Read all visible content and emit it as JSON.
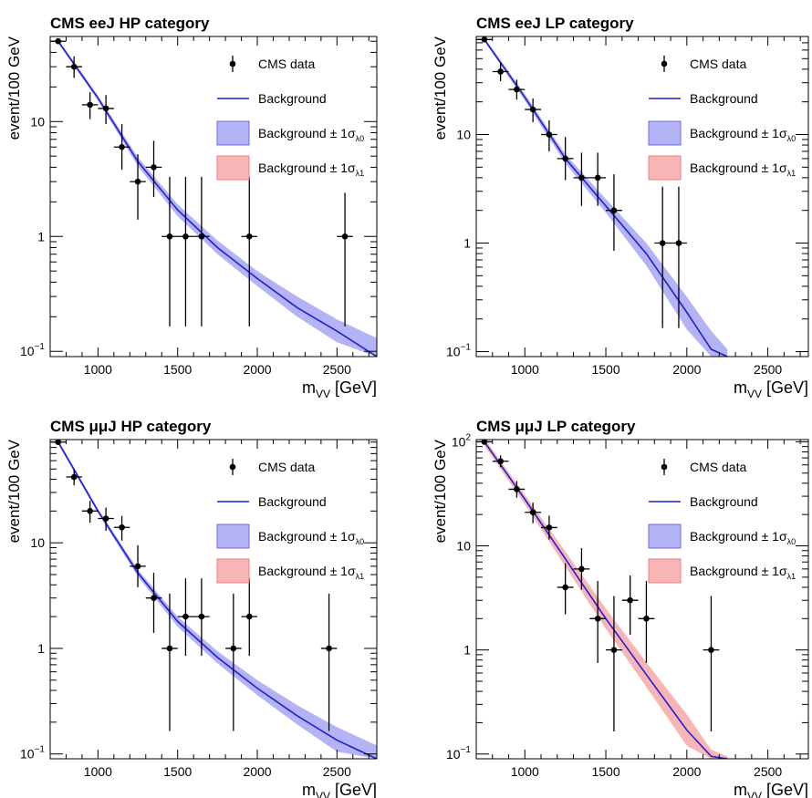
{
  "colors": {
    "data": "#000000",
    "background_line": "#1f1fd6",
    "band_lambda0": "#b3b3f5",
    "band_lambda0_edge": "#6b6bea",
    "band_lambda1": "#f7b5b5",
    "band_lambda1_edge": "#ee7f7f"
  },
  "legend": {
    "data": "CMS data",
    "background": "Background",
    "band0_main": "Background ± 1σ",
    "band0_sub": "λ0",
    "band1_main": "Background ± 1σ",
    "band1_sub": "λ1"
  },
  "chart_data": [
    {
      "type": "scatter",
      "title": "CMS eeJ HP category",
      "xlabel_main": "m",
      "xlabel_sub": "VV",
      "xlabel_unit": " [GeV]",
      "ylabel": "event/100 GeV",
      "log_y": true,
      "xlim": [
        700,
        2750
      ],
      "ylim": [
        0.09,
        55
      ],
      "xticks": [
        1000,
        1500,
        2000,
        2500
      ],
      "yticks": [
        {
          "v": 0.1,
          "base": "10",
          "exp": "−1"
        },
        {
          "v": 1,
          "base": "1",
          "exp": ""
        },
        {
          "v": 10,
          "base": "10",
          "exp": ""
        }
      ],
      "data_points": [
        {
          "x": 750,
          "y": 50,
          "lo": 50,
          "hi": 50
        },
        {
          "x": 850,
          "y": 30,
          "lo": 24,
          "hi": 37
        },
        {
          "x": 950,
          "y": 14,
          "lo": 10.5,
          "hi": 18
        },
        {
          "x": 1050,
          "y": 13,
          "lo": 9.5,
          "hi": 17
        },
        {
          "x": 1150,
          "y": 6,
          "lo": 3.8,
          "hi": 9.5
        },
        {
          "x": 1250,
          "y": 3,
          "lo": 1.4,
          "hi": 5.2
        },
        {
          "x": 1350,
          "y": 4,
          "lo": 2.2,
          "hi": 6.8
        },
        {
          "x": 1450,
          "y": 1,
          "lo": 0.165,
          "hi": 3.3
        },
        {
          "x": 1550,
          "y": 1,
          "lo": 0.165,
          "hi": 3.3
        },
        {
          "x": 1650,
          "y": 1,
          "lo": 0.165,
          "hi": 3.3
        },
        {
          "x": 1950,
          "y": 1,
          "lo": 0.165,
          "hi": 3.3
        },
        {
          "x": 2550,
          "y": 1,
          "lo": 0.165,
          "hi": 2.4
        }
      ],
      "background": {
        "x": [
          750,
          1000,
          1250,
          1500,
          1750,
          2000,
          2250,
          2500,
          2750
        ],
        "y": [
          50,
          16,
          4.5,
          1.7,
          0.8,
          0.43,
          0.24,
          0.15,
          0.088
        ],
        "band_lambda0": {
          "lo": [
            48,
            15.2,
            4.1,
            1.5,
            0.7,
            0.37,
            0.2,
            0.12,
            0.068
          ],
          "hi": [
            52,
            16.8,
            4.9,
            1.9,
            0.92,
            0.5,
            0.3,
            0.19,
            0.13
          ]
        },
        "band_lambda1": null
      }
    },
    {
      "type": "scatter",
      "title": "CMS eeJ LP category",
      "xlabel_main": "m",
      "xlabel_sub": "VV",
      "xlabel_unit": " [GeV]",
      "ylabel": "event/100 GeV",
      "log_y": true,
      "xlim": [
        700,
        2750
      ],
      "ylim": [
        0.09,
        80
      ],
      "xticks": [
        1000,
        1500,
        2000,
        2500
      ],
      "yticks": [
        {
          "v": 0.1,
          "base": "10",
          "exp": "−1"
        },
        {
          "v": 1,
          "base": "1",
          "exp": ""
        },
        {
          "v": 10,
          "base": "10",
          "exp": ""
        }
      ],
      "data_points": [
        {
          "x": 750,
          "y": 75,
          "lo": 75,
          "hi": 75
        },
        {
          "x": 850,
          "y": 38,
          "lo": 31,
          "hi": 46
        },
        {
          "x": 950,
          "y": 26,
          "lo": 21,
          "hi": 32
        },
        {
          "x": 1050,
          "y": 17,
          "lo": 13,
          "hi": 21.5
        },
        {
          "x": 1150,
          "y": 10,
          "lo": 7,
          "hi": 13.5
        },
        {
          "x": 1250,
          "y": 6,
          "lo": 3.8,
          "hi": 9.5
        },
        {
          "x": 1350,
          "y": 4,
          "lo": 2.2,
          "hi": 6.8
        },
        {
          "x": 1450,
          "y": 4,
          "lo": 2.2,
          "hi": 6.8
        },
        {
          "x": 1550,
          "y": 2,
          "lo": 0.85,
          "hi": 4.3
        },
        {
          "x": 1850,
          "y": 1,
          "lo": 0.165,
          "hi": 3.3
        },
        {
          "x": 1950,
          "y": 1,
          "lo": 0.165,
          "hi": 3.3
        }
      ],
      "background": {
        "x": [
          750,
          1000,
          1250,
          1500,
          1750,
          2000,
          2150,
          2250
        ],
        "y": [
          75,
          22,
          6,
          2.2,
          0.8,
          0.23,
          0.105,
          0.09
        ],
        "band_lambda0": {
          "lo": [
            72,
            20.5,
            5.4,
            1.9,
            0.62,
            0.16,
            0.09,
            0.09
          ],
          "hi": [
            78,
            23.5,
            6.6,
            2.55,
            1.0,
            0.32,
            0.155,
            0.105
          ]
        },
        "band_lambda1": null
      }
    },
    {
      "type": "scatter",
      "title": "CMS μμJ HP category",
      "xlabel_main": "m",
      "xlabel_sub": "VV",
      "xlabel_unit": " [GeV]",
      "ylabel": "event/100 GeV",
      "log_y": true,
      "xlim": [
        700,
        2750
      ],
      "ylim": [
        0.09,
        95
      ],
      "xticks": [
        1000,
        1500,
        2000,
        2500
      ],
      "yticks": [
        {
          "v": 0.1,
          "base": "10",
          "exp": "−1"
        },
        {
          "v": 1,
          "base": "1",
          "exp": ""
        },
        {
          "v": 10,
          "base": "10",
          "exp": ""
        }
      ],
      "data_points": [
        {
          "x": 750,
          "y": 90,
          "lo": 90,
          "hi": 90
        },
        {
          "x": 850,
          "y": 42,
          "lo": 35,
          "hi": 50
        },
        {
          "x": 950,
          "y": 20,
          "lo": 15.5,
          "hi": 25
        },
        {
          "x": 1050,
          "y": 17,
          "lo": 13,
          "hi": 21.5
        },
        {
          "x": 1150,
          "y": 14,
          "lo": 10.5,
          "hi": 18
        },
        {
          "x": 1250,
          "y": 6,
          "lo": 3.8,
          "hi": 9.5
        },
        {
          "x": 1350,
          "y": 3,
          "lo": 1.4,
          "hi": 5.2
        },
        {
          "x": 1450,
          "y": 1,
          "lo": 0.165,
          "hi": 3.3
        },
        {
          "x": 1550,
          "y": 2,
          "lo": 0.85,
          "hi": 4.6
        },
        {
          "x": 1650,
          "y": 2,
          "lo": 0.85,
          "hi": 4.6
        },
        {
          "x": 1850,
          "y": 1,
          "lo": 0.165,
          "hi": 3.3
        },
        {
          "x": 1950,
          "y": 2,
          "lo": 0.85,
          "hi": 4.6
        },
        {
          "x": 2450,
          "y": 1,
          "lo": 0.165,
          "hi": 3.3
        }
      ],
      "background": {
        "x": [
          750,
          1000,
          1250,
          1500,
          1750,
          2000,
          2250,
          2500,
          2750
        ],
        "y": [
          90,
          20,
          5.2,
          1.8,
          0.82,
          0.42,
          0.23,
          0.135,
          0.085
        ],
        "band_lambda0": {
          "lo": [
            86,
            19,
            4.8,
            1.6,
            0.72,
            0.36,
            0.19,
            0.105,
            0.063
          ],
          "hi": [
            94,
            21,
            5.6,
            2.0,
            0.94,
            0.5,
            0.29,
            0.18,
            0.12
          ]
        },
        "band_lambda1": null
      }
    },
    {
      "type": "scatter",
      "title": "CMS μμJ LP category",
      "xlabel_main": "m",
      "xlabel_sub": "VV",
      "xlabel_unit": " [GeV]",
      "ylabel": "event/100 GeV",
      "log_y": true,
      "xlim": [
        700,
        2750
      ],
      "ylim": [
        0.09,
        105
      ],
      "xticks": [
        1000,
        1500,
        2000,
        2500
      ],
      "yticks": [
        {
          "v": 0.1,
          "base": "10",
          "exp": "−1"
        },
        {
          "v": 1,
          "base": "1",
          "exp": ""
        },
        {
          "v": 10,
          "base": "10",
          "exp": ""
        },
        {
          "v": 100,
          "base": "10",
          "exp": "2"
        }
      ],
      "data_points": [
        {
          "x": 750,
          "y": 100,
          "lo": 100,
          "hi": 100
        },
        {
          "x": 850,
          "y": 65,
          "lo": 57,
          "hi": 74
        },
        {
          "x": 950,
          "y": 35,
          "lo": 29,
          "hi": 42
        },
        {
          "x": 1050,
          "y": 21,
          "lo": 16.5,
          "hi": 26
        },
        {
          "x": 1150,
          "y": 15,
          "lo": 11.5,
          "hi": 19.5
        },
        {
          "x": 1250,
          "y": 4,
          "lo": 2.2,
          "hi": 6.8
        },
        {
          "x": 1350,
          "y": 6,
          "lo": 3.8,
          "hi": 9.5
        },
        {
          "x": 1450,
          "y": 2,
          "lo": 0.75,
          "hi": 4.6
        },
        {
          "x": 1550,
          "y": 1,
          "lo": 0.165,
          "hi": 3.3
        },
        {
          "x": 1650,
          "y": 3,
          "lo": 1.4,
          "hi": 5.2
        },
        {
          "x": 1750,
          "y": 2,
          "lo": 0.75,
          "hi": 4.6
        },
        {
          "x": 2150,
          "y": 1,
          "lo": 0.165,
          "hi": 3.3
        }
      ],
      "background": {
        "x": [
          750,
          1000,
          1250,
          1500,
          1750,
          2000,
          2150,
          2250
        ],
        "y": [
          100,
          28,
          7.5,
          2.0,
          0.58,
          0.17,
          0.095,
          0.088
        ],
        "band_lambda0": null,
        "band_lambda1": {
          "lo": [
            92,
            25,
            6.3,
            1.6,
            0.44,
            0.12,
            0.085,
            0.085
          ],
          "hi": [
            108,
            31,
            8.8,
            2.5,
            0.76,
            0.24,
            0.11,
            0.095
          ]
        }
      }
    }
  ]
}
